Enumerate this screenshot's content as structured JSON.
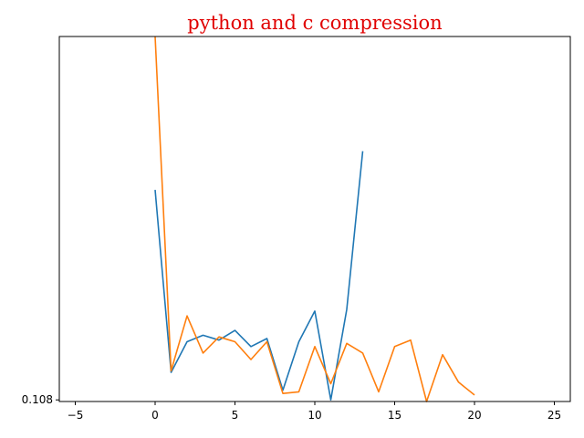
{
  "chart_data": {
    "type": "line",
    "title": "python and c compression",
    "title_color": "#ff0000",
    "xlabel": "",
    "ylabel": "",
    "xlim": [
      -6,
      26
    ],
    "ylim": [
      0.1079,
      0.1305
    ],
    "x_ticks": [
      -5,
      0,
      5,
      10,
      15,
      20,
      25
    ],
    "y_ticks": [
      {
        "value": 0.108,
        "label": "0.108"
      }
    ],
    "grid": false,
    "legend": "none",
    "series": [
      {
        "color": "#1f77b4",
        "x": [
          0,
          1,
          2,
          3,
          4,
          5,
          6,
          7,
          8,
          9,
          10,
          11,
          12,
          13
        ],
        "y": [
          0.121,
          0.1097,
          0.1116,
          0.112,
          0.1117,
          0.1123,
          0.1113,
          0.1118,
          0.1086,
          0.1116,
          0.1135,
          0.108,
          0.1136,
          0.1234
        ]
      },
      {
        "color": "#ff7f0e",
        "x": [
          0,
          1,
          2,
          3,
          4,
          5,
          6,
          7,
          8,
          9,
          10,
          11,
          12,
          13,
          14,
          15,
          16,
          17,
          18,
          19,
          20
        ],
        "y": [
          0.1305,
          0.1098,
          0.1132,
          0.1109,
          0.1119,
          0.1116,
          0.1105,
          0.1116,
          0.1084,
          0.1085,
          0.1113,
          0.109,
          0.1115,
          0.1109,
          0.1085,
          0.1113,
          0.1117,
          0.1079,
          0.1108,
          0.1091,
          0.1083
        ]
      }
    ]
  }
}
